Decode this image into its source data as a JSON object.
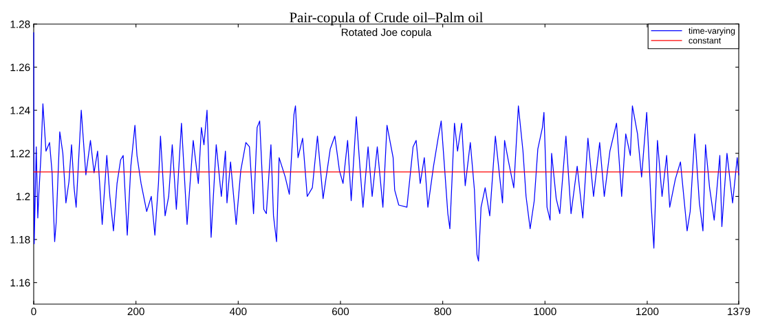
{
  "chart_data": {
    "type": "line",
    "title": "Pair-copula of Crude oil–Palm oil",
    "subtitle": "Rotated Joe copula",
    "xlim": [
      0,
      1379
    ],
    "xticks": [
      0,
      200,
      400,
      600,
      800,
      1000,
      1200,
      1379
    ],
    "ylim": [
      1.15,
      1.28
    ],
    "yticks": [
      1.16,
      1.18,
      {
        "value": 1.2,
        "label": "1.2"
      },
      1.22,
      1.24,
      1.26,
      1.28
    ],
    "grid": false,
    "legend": "top right",
    "marker": "none",
    "line_style": "solid",
    "series": [
      {
        "name": "time-varying",
        "color": "#0000ff",
        "x": [
          0,
          1,
          5,
          8,
          10,
          14,
          18,
          24,
          31,
          36,
          41,
          44,
          51,
          57,
          63,
          69,
          74,
          79,
          83,
          93,
          102,
          111,
          118,
          125,
          134,
          143,
          149,
          156,
          163,
          170,
          175,
          183,
          190,
          198,
          202,
          210,
          221,
          230,
          237,
          244,
          248,
          257,
          264,
          271,
          279,
          289,
          300,
          312,
          322,
          328,
          333,
          339,
          347,
          357,
          367,
          375,
          378,
          385,
          396,
          405,
          415,
          422,
          430,
          437,
          442,
          450,
          455,
          464,
          469,
          475,
          480,
          492,
          500,
          509,
          512,
          517,
          526,
          535,
          545,
          555,
          566,
          580,
          589,
          598,
          605,
          614,
          621,
          631,
          638,
          644,
          654,
          662,
          672,
          683,
          691,
          703,
          706,
          714,
          730,
          742,
          748,
          756,
          764,
          771,
          782,
          791,
          797,
          804,
          810,
          814,
          823,
          829,
          837,
          844,
          854,
          862,
          867,
          870,
          875,
          883,
          892,
          903,
          911,
          917,
          921,
          928,
          939,
          948,
          957,
          963,
          971,
          979,
          986,
          995,
          998,
          1004,
          1010,
          1013,
          1022,
          1029,
          1041,
          1051,
          1063,
          1074,
          1084,
          1095,
          1107,
          1116,
          1127,
          1140,
          1150,
          1158,
          1167,
          1171,
          1181,
          1189,
          1199,
          1208,
          1213,
          1220,
          1229,
          1238,
          1244,
          1255,
          1265,
          1278,
          1284,
          1293,
          1302,
          1309,
          1314,
          1322,
          1331,
          1342,
          1346,
          1356,
          1367,
          1376,
          1379
        ],
        "values": [
          1.276,
          1.178,
          1.223,
          1.19,
          1.201,
          1.218,
          1.243,
          1.221,
          1.225,
          1.211,
          1.179,
          1.188,
          1.23,
          1.22,
          1.197,
          1.207,
          1.224,
          1.204,
          1.195,
          1.24,
          1.21,
          1.226,
          1.211,
          1.221,
          1.187,
          1.219,
          1.2,
          1.184,
          1.206,
          1.217,
          1.219,
          1.182,
          1.214,
          1.233,
          1.219,
          1.206,
          1.193,
          1.2,
          1.182,
          1.206,
          1.228,
          1.191,
          1.2,
          1.224,
          1.194,
          1.234,
          1.187,
          1.226,
          1.206,
          1.232,
          1.224,
          1.24,
          1.181,
          1.224,
          1.2,
          1.221,
          1.197,
          1.216,
          1.187,
          1.212,
          1.225,
          1.223,
          1.192,
          1.232,
          1.235,
          1.194,
          1.192,
          1.224,
          1.191,
          1.179,
          1.218,
          1.209,
          1.201,
          1.238,
          1.242,
          1.218,
          1.227,
          1.2,
          1.204,
          1.228,
          1.199,
          1.222,
          1.228,
          1.212,
          1.206,
          1.226,
          1.198,
          1.237,
          1.214,
          1.195,
          1.223,
          1.2,
          1.223,
          1.195,
          1.233,
          1.218,
          1.203,
          1.196,
          1.195,
          1.223,
          1.226,
          1.206,
          1.218,
          1.195,
          1.214,
          1.227,
          1.235,
          1.212,
          1.192,
          1.185,
          1.234,
          1.221,
          1.234,
          1.205,
          1.225,
          1.203,
          1.173,
          1.17,
          1.195,
          1.204,
          1.191,
          1.228,
          1.21,
          1.197,
          1.226,
          1.217,
          1.204,
          1.242,
          1.221,
          1.2,
          1.185,
          1.198,
          1.222,
          1.232,
          1.239,
          1.195,
          1.189,
          1.22,
          1.199,
          1.192,
          1.228,
          1.192,
          1.214,
          1.19,
          1.227,
          1.2,
          1.225,
          1.2,
          1.221,
          1.234,
          1.2,
          1.229,
          1.219,
          1.242,
          1.229,
          1.209,
          1.239,
          1.195,
          1.176,
          1.226,
          1.2,
          1.219,
          1.195,
          1.208,
          1.216,
          1.184,
          1.193,
          1.229,
          1.197,
          1.184,
          1.224,
          1.204,
          1.189,
          1.219,
          1.186,
          1.22,
          1.197,
          1.218,
          1.21
        ]
      },
      {
        "name": "constant",
        "color": "#ff0000",
        "x": [
          0,
          1379
        ],
        "values": [
          1.2114,
          1.2114
        ]
      }
    ]
  }
}
